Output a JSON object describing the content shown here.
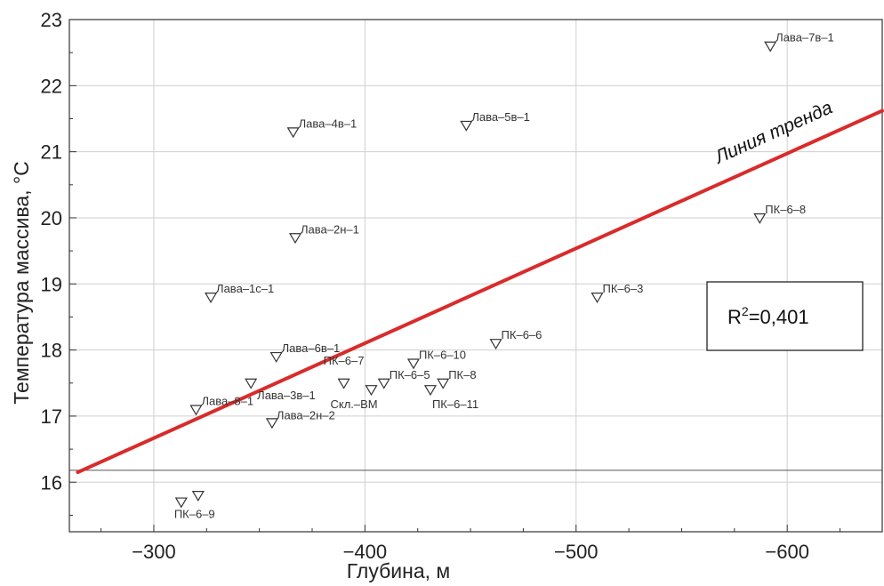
{
  "chart_data": {
    "type": "scatter",
    "xlabel": "Глубина, м",
    "ylabel": "Температура массива, °C",
    "xlim": [
      -260,
      -645
    ],
    "ylim": [
      15.25,
      23.0
    ],
    "x_ticks": [
      -300,
      -400,
      -500,
      -600
    ],
    "y_ticks": [
      16,
      17,
      18,
      19,
      20,
      21,
      22,
      23
    ],
    "grid": true,
    "reference_line_y": 16.18,
    "trend_line": {
      "label": "Линия тренда",
      "color": "#d92b2b",
      "from": [
        -264,
        16.15
      ],
      "to": [
        -645,
        21.62
      ]
    },
    "r_squared": {
      "prefix": "R",
      "sup": "2",
      "value": "=0,401"
    },
    "points": [
      {
        "x": -592,
        "y": 22.6,
        "label": "Лава–7в–1"
      },
      {
        "x": -448,
        "y": 21.4,
        "label": "Лава–5в–1"
      },
      {
        "x": -366,
        "y": 21.3,
        "label": "Лава–4в–1"
      },
      {
        "x": -587,
        "y": 20.0,
        "label": "ПК–6–8"
      },
      {
        "x": -367,
        "y": 19.7,
        "label": "Лава–2н–1"
      },
      {
        "x": -327,
        "y": 18.8,
        "label": "Лава–1с–1"
      },
      {
        "x": -510,
        "y": 18.8,
        "label": "ПК–6–3"
      },
      {
        "x": -462,
        "y": 18.1,
        "label": "ПК–6–6"
      },
      {
        "x": -358,
        "y": 17.9,
        "label": "Лава–6в–1"
      },
      {
        "x": -423,
        "y": 17.8,
        "label": "ПК–6–10"
      },
      {
        "x": -390,
        "y": 17.5,
        "label": "ПК–6–7"
      },
      {
        "x": -346,
        "y": 17.5,
        "label": "Лава–3в–1"
      },
      {
        "x": -437,
        "y": 17.5,
        "label": "ПК–8"
      },
      {
        "x": -409,
        "y": 17.5,
        "label": "ПК–6–5"
      },
      {
        "x": -403,
        "y": 17.4,
        "label": "Скл.–ВМ"
      },
      {
        "x": -431,
        "y": 17.4,
        "label": "ПК–6–11"
      },
      {
        "x": -320,
        "y": 17.1,
        "label": "Лава–8–1"
      },
      {
        "x": -356,
        "y": 16.9,
        "label": "Лава–2н–2"
      },
      {
        "x": -321,
        "y": 15.8,
        "label": ""
      },
      {
        "x": -313,
        "y": 15.7,
        "label": "ПК–6–9"
      }
    ]
  }
}
